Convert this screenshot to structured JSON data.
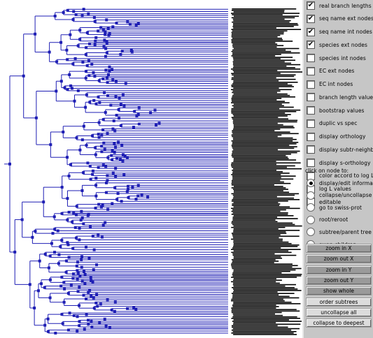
{
  "display_options": [
    {
      "label": "real branch lengths",
      "checked": true
    },
    {
      "label": "seq name ext nodes",
      "checked": true
    },
    {
      "label": "seq name int nodes",
      "checked": true
    },
    {
      "label": "species ext nodes",
      "checked": true
    },
    {
      "label": "species int nodes",
      "checked": false
    },
    {
      "label": "EC ext nodes",
      "checked": false
    },
    {
      "label": "EC int nodes",
      "checked": false
    },
    {
      "label": "branch length values",
      "checked": false
    },
    {
      "label": "bootstrap values",
      "checked": false
    },
    {
      "label": "duplic vs spec",
      "checked": false
    },
    {
      "label": "display orthology",
      "checked": false
    },
    {
      "label": "display subtr-neighb",
      "checked": false
    },
    {
      "label": "display s-orthology",
      "checked": false
    },
    {
      "label": "color accord to log L",
      "checked": false
    },
    {
      "label": "log L values",
      "checked": false
    },
    {
      "label": "editable",
      "checked": false
    }
  ],
  "click_on_node": {
    "label": "click on node to:",
    "options": [
      {
        "label": "display/edit information",
        "selected": true
      },
      {
        "label": "collapse/uncollapse",
        "selected": false
      },
      {
        "label": "go to swiss-prot",
        "selected": false
      },
      {
        "label": "root/reroot",
        "selected": false
      },
      {
        "label": "subtree/parent tree",
        "selected": false
      },
      {
        "label": "swap children",
        "selected": false
      }
    ]
  },
  "buttons": [
    {
      "label": "zoom in X",
      "style": "dark"
    },
    {
      "label": "zoom out X",
      "style": "dark"
    },
    {
      "label": "zoom in Y",
      "style": "dark"
    },
    {
      "label": "zoom out Y",
      "style": "dark"
    },
    {
      "label": "show whole",
      "style": "dark"
    },
    {
      "label": "order subtrees",
      "style": "light"
    },
    {
      "label": "uncollapse all",
      "style": "light"
    },
    {
      "label": "collapse to deepest",
      "style": "light"
    }
  ],
  "colors": {
    "branch": "#1e1eb4",
    "node": "#1e1eb4",
    "labels": "#000000",
    "panel": "#c6c6c6"
  }
}
